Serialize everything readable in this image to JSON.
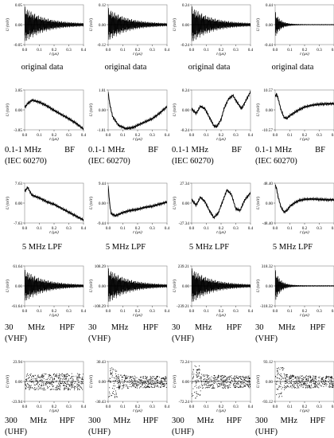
{
  "figure": {
    "ylabel": "U (mV)",
    "xlabel": "t (μs)",
    "xticks": [
      "0.0",
      "0.1",
      "0.2",
      "0.3",
      "0.4"
    ],
    "columns": 4
  },
  "captions": {
    "original": "original data",
    "bf_line1": "0.1-1 MHz",
    "bf_line1_b": "BF",
    "bf_line2": "(IEC 60270)",
    "lpf": "5 MHz LPF",
    "hpf30_line1_a": "30",
    "hpf30_line1_b": "MHz",
    "hpf30_line1_c": "HPF",
    "hpf30_line2": "(VHF)",
    "hpf300_line1_a": "300",
    "hpf300_line1_b": "MHz",
    "hpf300_line1_c": "HPF",
    "hpf300_line2": "(UHF)"
  },
  "chart_data": [
    {
      "type": "line",
      "row": "original data",
      "col": 1,
      "ylabel": "U (mV)",
      "xlabel": "t (μs)",
      "xlim": [
        0,
        0.4
      ],
      "yticks": [
        "0.05",
        "0.00",
        "-0.05"
      ],
      "ylim": [
        -0.05,
        0.05
      ],
      "signal": "decaying oscillation, dense",
      "amplitude": 0.045
    },
    {
      "type": "line",
      "row": "original data",
      "col": 2,
      "ylabel": "U (mV)",
      "xlabel": "t (μs)",
      "xlim": [
        0,
        0.4
      ],
      "yticks": [
        "0.12",
        "0.00",
        "-0.12"
      ],
      "ylim": [
        -0.12,
        0.12
      ],
      "signal": "decaying oscillation, dense",
      "amplitude": 0.1
    },
    {
      "type": "line",
      "row": "original data",
      "col": 3,
      "ylabel": "U (mV)",
      "xlabel": "t (μs)",
      "xlim": [
        0,
        0.4
      ],
      "yticks": [
        "0.24",
        "0.00",
        "-0.24"
      ],
      "ylim": [
        -0.24,
        0.24
      ],
      "signal": "decaying oscillation, dense",
      "amplitude": 0.22
    },
    {
      "type": "line",
      "row": "original data",
      "col": 4,
      "ylabel": "U (mV)",
      "xlabel": "t (μs)",
      "xlim": [
        0,
        0.4
      ],
      "yticks": [
        "0.44",
        "0.00",
        "-0.44"
      ],
      "ylim": [
        -0.44,
        0.44
      ],
      "signal": "short burst then settling",
      "amplitude": 0.3
    },
    {
      "type": "line",
      "row": "0.1-1 MHz BF (IEC 60270)",
      "col": 1,
      "ylabel": "U (mV)",
      "xlabel": "t (μs)",
      "xlim": [
        0,
        0.4
      ],
      "yticks": [
        "3.85",
        "0.00",
        "-3.85"
      ],
      "ylim": [
        -3.85,
        3.85
      ],
      "x": [
        0.0,
        0.02,
        0.05,
        0.1,
        0.15,
        0.2,
        0.25,
        0.3,
        0.35,
        0.4
      ],
      "y": [
        0.5,
        1.2,
        1.9,
        1.5,
        0.8,
        -0.1,
        -0.9,
        -1.7,
        -2.6,
        -3.7
      ]
    },
    {
      "type": "line",
      "row": "0.1-1 MHz BF (IEC 60270)",
      "col": 2,
      "ylabel": "U (mV)",
      "xlabel": "t (μs)",
      "xlim": [
        0,
        0.4
      ],
      "yticks": [
        "1.81",
        "0.00",
        "-1.81"
      ],
      "ylim": [
        -1.81,
        1.81
      ],
      "x": [
        0.0,
        0.01,
        0.03,
        0.07,
        0.12,
        0.17,
        0.2,
        0.25,
        0.3,
        0.35,
        0.4
      ],
      "y": [
        1.6,
        0.6,
        -0.6,
        -1.4,
        -1.7,
        -1.6,
        -1.4,
        -1.1,
        -0.8,
        -0.3,
        0.3
      ]
    },
    {
      "type": "line",
      "row": "0.1-1 MHz BF (IEC 60270)",
      "col": 3,
      "ylabel": "U (mV)",
      "xlabel": "t (μs)",
      "xlim": [
        0,
        0.4
      ],
      "yticks": [
        "8.24",
        "0.00",
        "-8.24"
      ],
      "ylim": [
        -8.24,
        8.24
      ],
      "x": [
        0.0,
        0.03,
        0.06,
        0.09,
        0.12,
        0.15,
        0.17,
        0.2,
        0.22,
        0.25,
        0.28,
        0.31,
        0.34,
        0.37,
        0.4
      ],
      "y": [
        0.5,
        -1.5,
        1.5,
        0.5,
        -3.0,
        -6.5,
        -7.0,
        -4.0,
        0.5,
        4.5,
        6.0,
        3.0,
        0.5,
        4.0,
        7.5
      ]
    },
    {
      "type": "line",
      "row": "0.1-1 MHz BF (IEC 60270)",
      "col": 4,
      "ylabel": "U (mV)",
      "xlabel": "t (μs)",
      "xlim": [
        0,
        0.4
      ],
      "yticks": [
        "10.57",
        "0.00",
        "-10.57"
      ],
      "ylim": [
        -10.57,
        10.57
      ],
      "x": [
        0.0,
        0.01,
        0.02,
        0.04,
        0.06,
        0.08,
        0.1,
        0.13,
        0.16,
        0.2,
        0.25,
        0.3,
        0.35,
        0.4
      ],
      "y": [
        7.0,
        8.5,
        6.0,
        0.0,
        -4.0,
        -4.5,
        -3.0,
        -1.5,
        0.0,
        1.5,
        2.5,
        3.0,
        3.2,
        3.3
      ]
    },
    {
      "type": "line",
      "row": "5 MHz LPF",
      "col": 1,
      "ylabel": "U (mV)",
      "xlabel": "t (μs)",
      "xlim": [
        0,
        0.4
      ],
      "yticks": [
        "7.63",
        "0.00",
        "-7.63"
      ],
      "ylim": [
        -7.63,
        7.63
      ],
      "x": [
        0.0,
        0.02,
        0.05,
        0.1,
        0.15,
        0.2,
        0.25,
        0.3,
        0.35,
        0.4
      ],
      "y": [
        4.5,
        6.0,
        3.0,
        2.0,
        0.5,
        -0.5,
        -2.0,
        -3.5,
        -5.0,
        -6.5
      ]
    },
    {
      "type": "line",
      "row": "5 MHz LPF",
      "col": 2,
      "ylabel": "U (mV)",
      "xlabel": "t (μs)",
      "xlim": [
        0,
        0.4
      ],
      "yticks": [
        "9.44",
        "0.00",
        "-9.44"
      ],
      "ylim": [
        -9.44,
        9.44
      ],
      "x": [
        0.0,
        0.01,
        0.02,
        0.05,
        0.1,
        0.15,
        0.2,
        0.25,
        0.3,
        0.35,
        0.4
      ],
      "y": [
        8.0,
        0.0,
        -5.0,
        -6.0,
        -4.5,
        -3.5,
        -3.0,
        -2.0,
        -1.5,
        -0.5,
        0.5
      ]
    },
    {
      "type": "line",
      "row": "5 MHz LPF",
      "col": 3,
      "ylabel": "U (mV)",
      "xlabel": "t (μs)",
      "xlim": [
        0,
        0.4
      ],
      "yticks": [
        "27.34",
        "0.00",
        "-27.34"
      ],
      "ylim": [
        -27.34,
        27.34
      ],
      "x": [
        0.0,
        0.03,
        0.06,
        0.09,
        0.12,
        0.15,
        0.18,
        0.21,
        0.24,
        0.27,
        0.3,
        0.33,
        0.36,
        0.4
      ],
      "y": [
        5.0,
        -3.0,
        8.0,
        2.0,
        -10.0,
        -20.0,
        -14.0,
        2.0,
        18.0,
        12.0,
        -8.0,
        -10.0,
        4.0,
        14.0
      ]
    },
    {
      "type": "line",
      "row": "5 MHz LPF",
      "col": 4,
      "ylabel": "U (mV)",
      "xlabel": "t (μs)",
      "xlim": [
        0,
        0.4
      ],
      "yticks": [
        "48.40",
        "0.00",
        "-48.40"
      ],
      "ylim": [
        -48.4,
        48.4
      ],
      "x": [
        0.0,
        0.01,
        0.02,
        0.04,
        0.06,
        0.08,
        0.1,
        0.13,
        0.16,
        0.2,
        0.25,
        0.3,
        0.35,
        0.4
      ],
      "y": [
        44.0,
        35.0,
        15.0,
        -10.0,
        -22.0,
        -18.0,
        -8.0,
        0.0,
        6.0,
        9.0,
        10.0,
        9.0,
        8.0,
        8.0
      ]
    },
    {
      "type": "line",
      "row": "30 MHz HPF (VHF)",
      "col": 1,
      "ylabel": "U (mV)",
      "xlabel": "t (μs)",
      "xlim": [
        0,
        0.4
      ],
      "yticks": [
        "61.64",
        "0.00",
        "-61.64"
      ],
      "ylim": [
        -61.64,
        61.64
      ],
      "signal": "decaying oscillation, dense",
      "amplitude": 50
    },
    {
      "type": "line",
      "row": "30 MHz HPF (VHF)",
      "col": 2,
      "ylabel": "U (mV)",
      "xlabel": "t (μs)",
      "xlim": [
        0,
        0.4
      ],
      "yticks": [
        "108.29",
        "0.00",
        "-108.29"
      ],
      "ylim": [
        -108.29,
        108.29
      ],
      "signal": "decaying oscillation, dense",
      "amplitude": 95
    },
    {
      "type": "line",
      "row": "30 MHz HPF (VHF)",
      "col": 3,
      "ylabel": "U (mV)",
      "xlabel": "t (μs)",
      "xlim": [
        0,
        0.4
      ],
      "yticks": [
        "239.21",
        "0.00",
        "-239.21"
      ],
      "ylim": [
        -239.21,
        239.21
      ],
      "signal": "decaying oscillation, dense",
      "amplitude": 210
    },
    {
      "type": "line",
      "row": "30 MHz HPF (VHF)",
      "col": 4,
      "ylabel": "U (mV)",
      "xlabel": "t (μs)",
      "xlim": [
        0,
        0.4
      ],
      "yticks": [
        "318.32",
        "0.00",
        "-318.32"
      ],
      "ylim": [
        -318.32,
        318.32
      ],
      "signal": "short burst then settling",
      "amplitude": 270
    },
    {
      "type": "scatter",
      "row": "300 MHz HPF (UHF)",
      "col": 1,
      "ylabel": "U (mV)",
      "xlabel": "t (μs)",
      "xlim": [
        0,
        0.4
      ],
      "yticks": [
        "23.94",
        "0.00",
        "-23.94"
      ],
      "ylim": [
        -23.94,
        23.94
      ],
      "signal": "broadband noise",
      "amplitude": 18
    },
    {
      "type": "scatter",
      "row": "300 MHz HPF (UHF)",
      "col": 2,
      "ylabel": "U (mV)",
      "xlabel": "t (μs)",
      "xlim": [
        0,
        0.4
      ],
      "yticks": [
        "30.43",
        "0.00",
        "-30.43"
      ],
      "ylim": [
        -30.43,
        30.43
      ],
      "signal": "early burst then noise",
      "amplitude": 24
    },
    {
      "type": "scatter",
      "row": "300 MHz HPF (UHF)",
      "col": 3,
      "ylabel": "U (mV)",
      "xlabel": "t (μs)",
      "xlim": [
        0,
        0.4
      ],
      "yticks": [
        "72.24",
        "0.00",
        "-72.24"
      ],
      "ylim": [
        -72.24,
        72.24
      ],
      "signal": "early burst then noise",
      "amplitude": 60
    },
    {
      "type": "scatter",
      "row": "300 MHz HPF (UHF)",
      "col": 4,
      "ylabel": "U (mV)",
      "xlabel": "t (μs)",
      "xlim": [
        0,
        0.4
      ],
      "yticks": [
        "93.12",
        "0.00",
        "-93.12"
      ],
      "ylim": [
        -93.12,
        93.12
      ],
      "signal": "early burst then noise",
      "amplitude": 75
    }
  ]
}
